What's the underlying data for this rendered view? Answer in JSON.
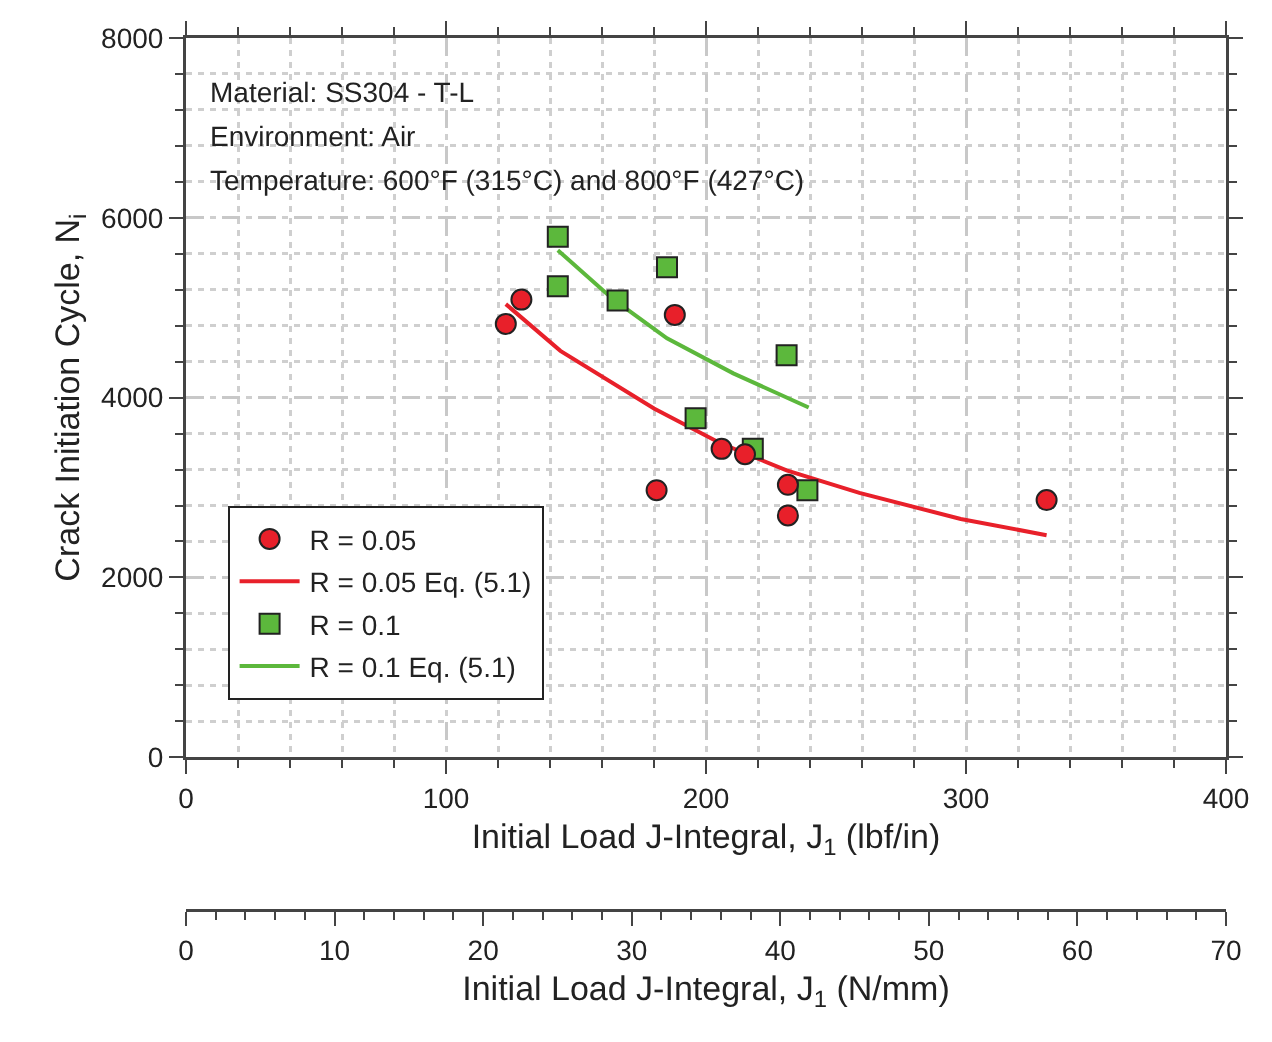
{
  "chart_data": {
    "type": "scatter",
    "xlabel": "Initial Load J-Integral, J$_{1}$ (lbf/in)",
    "ylabel": "Crack Initiation Cycle, N$_{i}$",
    "x2label": "Initial Load J-Integral, J$_{1}$ (N/mm)",
    "annotations": [
      "Material: SS304 - T-L",
      "Environment: Air",
      "Temperature: 600°F (315°C) and 800°F (427°C)"
    ],
    "xlim": [
      0,
      400
    ],
    "xticks": [
      0,
      100,
      200,
      300,
      400
    ],
    "ylim": [
      0,
      8000
    ],
    "yticks": [
      0,
      2000,
      4000,
      6000,
      8000
    ],
    "x2lim": [
      0,
      70
    ],
    "x2ticks": [
      0,
      10,
      20,
      30,
      40,
      50,
      60,
      70
    ],
    "grid": true,
    "legend": "bottom left",
    "series": [
      {
        "name": "R = 0.05",
        "type": "scatter",
        "marker": "circle",
        "color": "#e8202a",
        "x": [
          123,
          129,
          188,
          181,
          206,
          215,
          231.5,
          231.5,
          331
        ],
        "values": [
          4820,
          5090,
          4920,
          2970,
          3430,
          3370,
          3030,
          2690,
          2860
        ]
      },
      {
        "name": "R = 0.05 Eq. (5.1)",
        "type": "line",
        "marker": "none",
        "line_style": "solid",
        "color": "#e8202a",
        "x": [
          123,
          144,
          180,
          205,
          231,
          259,
          298,
          331
        ],
        "values": [
          5040,
          4520,
          3880,
          3500,
          3190,
          2940,
          2650,
          2470
        ]
      },
      {
        "name": "R = 0.1",
        "type": "scatter",
        "marker": "square",
        "color": "#5cb83c",
        "x": [
          143,
          143,
          166,
          185,
          231,
          196,
          218,
          239
        ],
        "values": [
          5790,
          5240,
          5080,
          5450,
          4470,
          3770,
          3430,
          2970
        ]
      },
      {
        "name": "R = 0.1 Eq. (5.1)",
        "type": "line",
        "marker": "none",
        "line_style": "solid",
        "color": "#5cb83c",
        "x": [
          143,
          164,
          185,
          210.5,
          239.5
        ],
        "values": [
          5640,
          5100,
          4660,
          4270,
          3890
        ]
      }
    ]
  }
}
